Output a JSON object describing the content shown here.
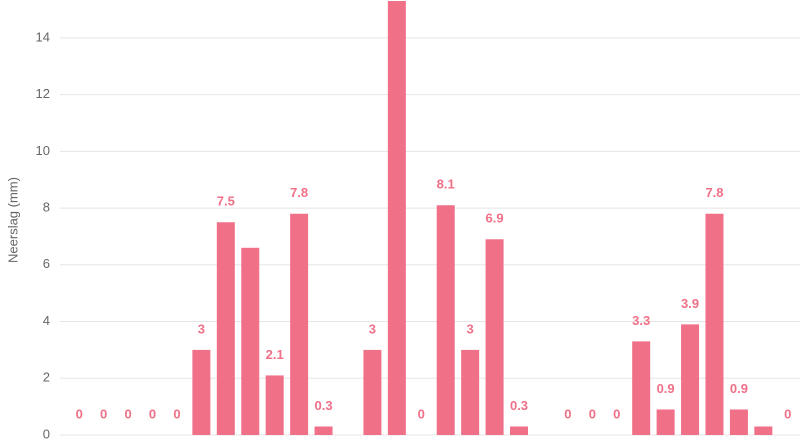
{
  "chart_data": {
    "type": "bar",
    "y_label": "Neerslag (mm)",
    "categories": [
      null,
      null,
      null,
      null,
      null,
      null,
      null,
      null,
      null,
      null,
      null,
      null,
      null,
      null,
      null,
      null,
      null,
      null,
      null,
      null,
      null,
      null,
      null,
      null,
      null,
      null,
      null,
      null,
      null,
      null
    ],
    "values": [
      0,
      0,
      0,
      0,
      0,
      3,
      7.5,
      6.6,
      2.1,
      7.8,
      0.3,
      null,
      3,
      15.3,
      0,
      8.1,
      3,
      6.9,
      0.3,
      null,
      0,
      0,
      0,
      3.3,
      0.9,
      3.9,
      7.8,
      0.9,
      0.3,
      0
    ],
    "value_labels": [
      "0",
      "0",
      "0",
      "0",
      "0",
      "3",
      "7.5",
      null,
      "2.1",
      "7.8",
      "0.3",
      null,
      "3",
      null,
      "0",
      "8.1",
      "3",
      "6.9",
      "0.3",
      null,
      "0",
      "0",
      "0",
      "3.3",
      "0.9",
      "3.9",
      "7.8",
      "0.9",
      null,
      "0"
    ],
    "color": "#f07088",
    "ylim": [
      0,
      15.3
    ],
    "yticks": [
      0,
      2,
      4,
      6,
      8,
      10,
      12,
      14
    ],
    "grid": true
  }
}
